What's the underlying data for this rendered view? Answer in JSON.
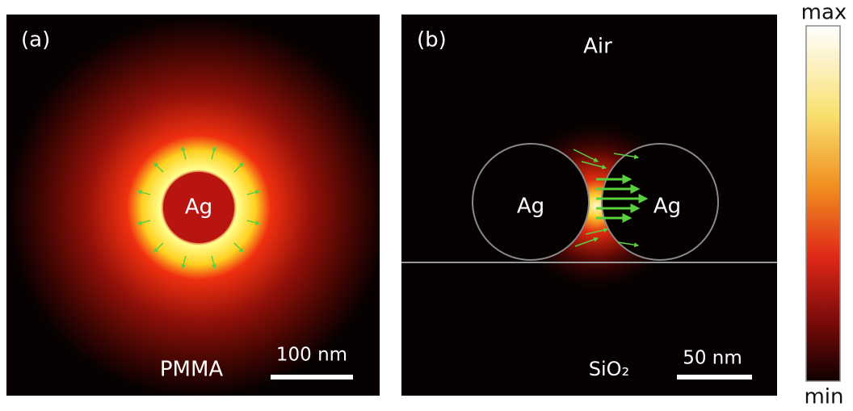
{
  "panel_a": {
    "label": "(a)",
    "particle": "Ag",
    "medium": "PMMA",
    "scale_bar": "100 nm"
  },
  "panel_b": {
    "label": "(b)",
    "top_medium": "Air",
    "particles": [
      "Ag",
      "Ag"
    ],
    "substrate": "SiO₂",
    "scale_bar": "50 nm"
  },
  "colorbar": {
    "max": "max",
    "min": "min"
  }
}
